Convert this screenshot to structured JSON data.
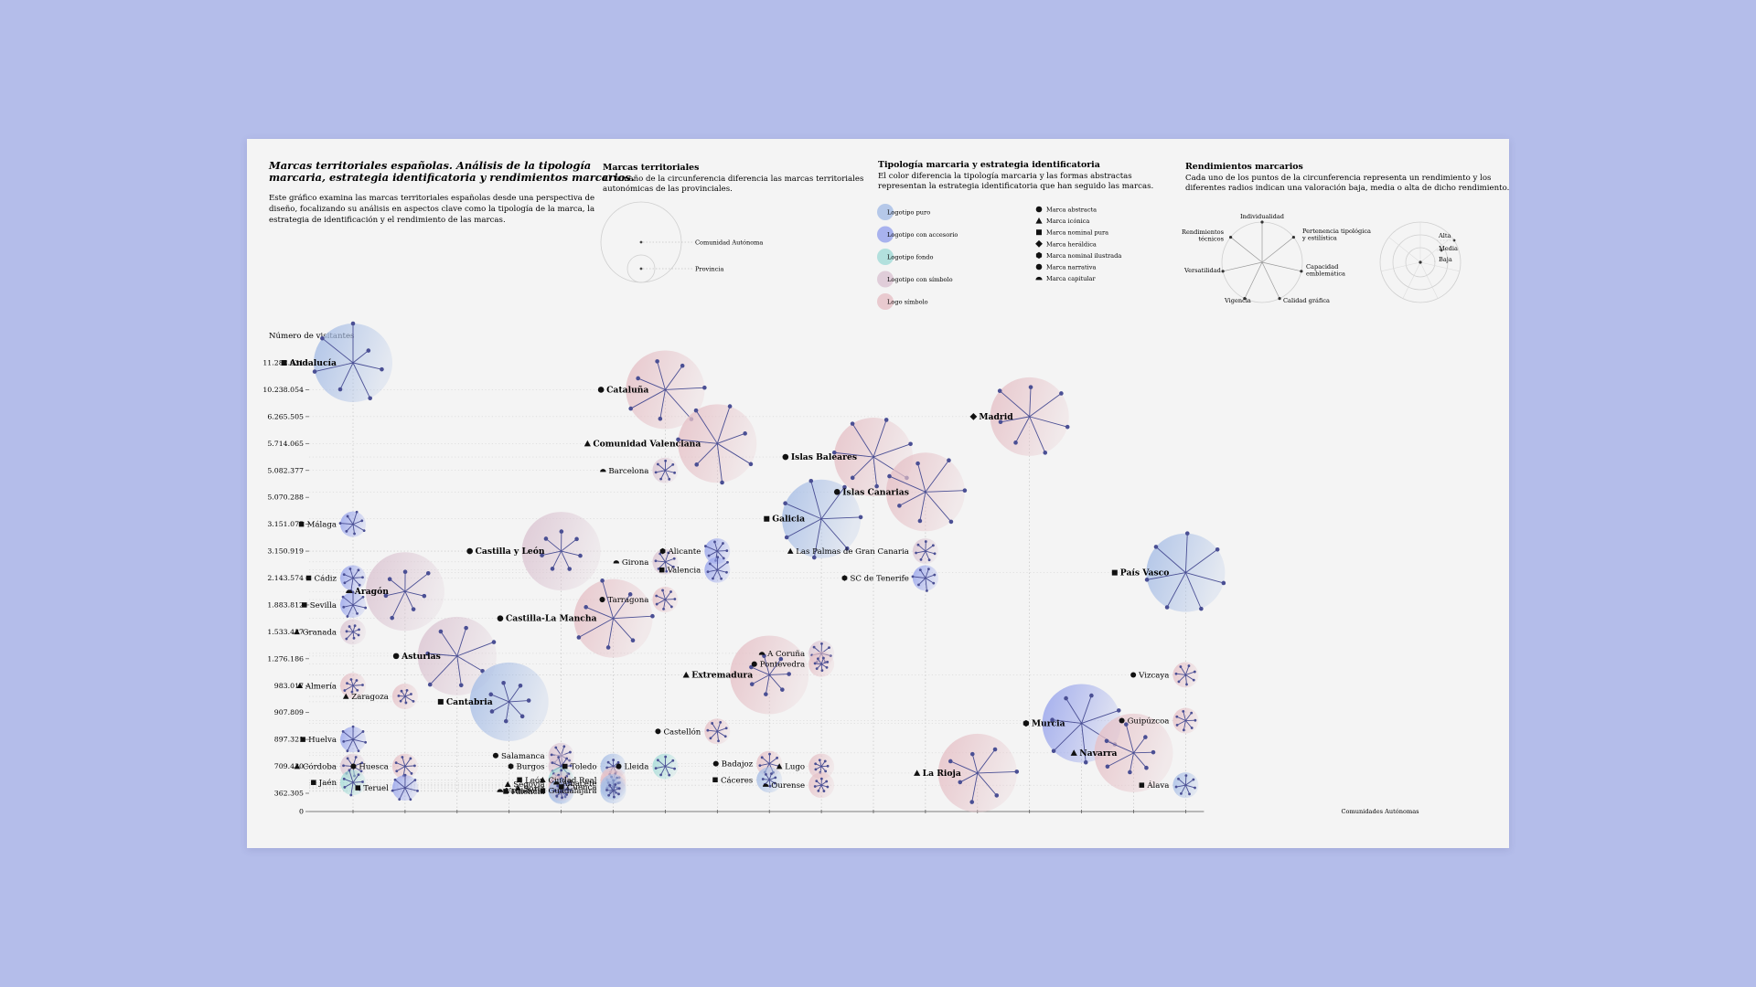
{
  "header": {
    "title_line1": "Marcas territoriales españolas. Análisis de la tipología",
    "title_line2": "marcaria, estrategia identificatoria y rendimientos marcarios.",
    "intro_lines": [
      "Este gráfico examina las marcas territoriales españolas desde una perspectiva de",
      "diseño, focalizando su análisis en aspectos clave como la tipología de la marca, la",
      "estrategia de identificación y el rendimiento de las marcas."
    ]
  },
  "legend_size": {
    "title": "Marcas territoriales",
    "lines": [
      "El tamaño de la circunferencia diferencia las marcas territoriales",
      "autonómicas de las provinciales."
    ],
    "large_label": "Comunidad Autónoma",
    "small_label": "Provincia"
  },
  "legend_type": {
    "title": "Tipología marcaria y estrategia identificatoria",
    "lines": [
      "El color diferencia la tipología marcaria y las formas abstractas",
      "representan la estrategia identificatoria que han seguido las marcas."
    ],
    "colors": [
      {
        "label": "Logotipo puro",
        "color": "#a9bfe6"
      },
      {
        "label": "Logotipo con accesorio",
        "color": "#9aa6ec"
      },
      {
        "label": "Logotipo fondo",
        "color": "#a6dcd8"
      },
      {
        "label": "Logotipo con símbolo",
        "color": "#dcc6d3"
      },
      {
        "label": "Logo símbolo",
        "color": "#e6c2c8"
      }
    ],
    "shapes": [
      {
        "label": "Marca abstracta",
        "shape": "circle"
      },
      {
        "label": "Marca icónica",
        "shape": "triangle"
      },
      {
        "label": "Marca nominal pura",
        "shape": "square"
      },
      {
        "label": "Marca heráldica",
        "shape": "diamond"
      },
      {
        "label": "Marca nominal ilustrada",
        "shape": "hexagon"
      },
      {
        "label": "Marca narrativa",
        "shape": "circle"
      },
      {
        "label": "Marca capitular",
        "shape": "dome"
      }
    ]
  },
  "legend_perf": {
    "title": "Rendimientos marcarios",
    "lines": [
      "Cada uno de los puntos de la circunferencia representa un rendimiento y los",
      "diferentes radios indican una valoración baja, media o alta de dicho rendimiento."
    ],
    "axes": [
      "Individualidad",
      "Pertenencia tipológica y estilística",
      "Capacidad emblemática",
      "Calidad gráfica",
      "Vigencia",
      "Versatilidad",
      "Rendimientos técnicos"
    ],
    "levels": [
      "Alta",
      "Media",
      "Baja"
    ]
  },
  "chart_data": {
    "type": "scatter",
    "ylabel": "Número de visitantes",
    "xlabel": "Comunidades Autónomas",
    "y_ticks": [
      "0",
      "362.305",
      "709.430",
      "897.321",
      "907.809",
      "983.017",
      "1.276.186",
      "1.533.437",
      "1.883.812",
      "2.143.574",
      "3.150.919",
      "3.151.075",
      "5.070.288",
      "5.082.377",
      "5.714.065",
      "6.265.505",
      "10.238.054",
      "11.282.631"
    ],
    "columns": 17,
    "colors": {
      "p": "#a9bfe6",
      "a": "#9aa6ec",
      "f": "#a6dcd8",
      "s": "#dcc6d3",
      "l": "#e6c2c8",
      "dot": "#4a4f94"
    },
    "points": [
      {
        "name": "Andalucía",
        "col": 0,
        "level": 17,
        "ca": true,
        "color": "p",
        "shape": "square",
        "perf": [
          3,
          1,
          2,
          3,
          2,
          3,
          3
        ]
      },
      {
        "name": "Málaga",
        "col": 0,
        "level": 11,
        "ca": false,
        "color": "a",
        "shape": "square",
        "perf": [
          3,
          2,
          3,
          2,
          2,
          3,
          2
        ]
      },
      {
        "name": "Cádiz",
        "col": 0,
        "level": 9,
        "ca": false,
        "color": "a",
        "shape": "square",
        "perf": [
          2,
          2,
          2,
          3,
          2,
          2,
          2
        ]
      },
      {
        "name": "Sevilla",
        "col": 0,
        "level": 8,
        "ca": false,
        "color": "a",
        "shape": "square",
        "perf": [
          3,
          3,
          2,
          3,
          2,
          3,
          3
        ]
      },
      {
        "name": "Granada",
        "col": 0,
        "level": 7,
        "ca": false,
        "color": "s",
        "shape": "triangle",
        "perf": [
          1,
          1,
          1,
          2,
          1,
          1,
          1
        ]
      },
      {
        "name": "Almería",
        "col": 0,
        "level": 5,
        "ca": false,
        "color": "l",
        "shape": "triangle",
        "perf": [
          2,
          1,
          1,
          2,
          1,
          1,
          1
        ]
      },
      {
        "name": "Huelva",
        "col": 0,
        "level": 3,
        "ca": false,
        "color": "a",
        "shape": "square",
        "perf": [
          3,
          3,
          3,
          2,
          3,
          3,
          3
        ]
      },
      {
        "name": "Córdoba",
        "col": 0,
        "level": 2,
        "ca": false,
        "color": "s",
        "shape": "triangle",
        "perf": [
          2,
          2,
          2,
          2,
          2,
          2,
          2
        ]
      },
      {
        "name": "Jaén",
        "col": 0,
        "level": 1.4,
        "ca": false,
        "color": "f",
        "shape": "square",
        "perf": [
          2,
          3,
          2,
          2,
          3,
          2,
          2
        ]
      },
      {
        "name": "Aragón",
        "col": 1,
        "level": 8.5,
        "ca": true,
        "color": "s",
        "shape": "dome",
        "perf": [
          1,
          2,
          1,
          1,
          1,
          2,
          1
        ]
      },
      {
        "name": "Zaragoza",
        "col": 1,
        "level": 4.6,
        "ca": false,
        "color": "l",
        "shape": "triangle",
        "perf": [
          1,
          1,
          1,
          1,
          1,
          1,
          2
        ]
      },
      {
        "name": "Huesca",
        "col": 1,
        "level": 2,
        "ca": false,
        "color": "l",
        "shape": "circle",
        "perf": [
          2,
          2,
          2,
          2,
          2,
          2,
          2
        ]
      },
      {
        "name": "Teruel",
        "col": 1,
        "level": 1.2,
        "ca": false,
        "color": "a",
        "shape": "square",
        "perf": [
          3,
          3,
          3,
          3,
          3,
          3,
          3
        ]
      },
      {
        "name": "Asturias",
        "col": 2,
        "level": 6.1,
        "ca": true,
        "color": "s",
        "shape": "circle",
        "perf": [
          3,
          2,
          2,
          2,
          3,
          2,
          2
        ]
      },
      {
        "name": "Cantabria",
        "col": 3,
        "level": 4.4,
        "ca": true,
        "color": "p",
        "shape": "square",
        "perf": [
          1,
          1,
          1,
          1,
          1,
          1,
          1
        ]
      },
      {
        "name": "Castilla y León",
        "col": 4,
        "level": 10,
        "ca": true,
        "color": "s",
        "shape": "circle",
        "perf": [
          1,
          1,
          1,
          1,
          1,
          1,
          1
        ]
      },
      {
        "name": "Salamanca",
        "col": 4,
        "level": 2.4,
        "ca": false,
        "color": "s",
        "shape": "circle",
        "perf": [
          2,
          2,
          2,
          2,
          2,
          2,
          2
        ]
      },
      {
        "name": "Burgos",
        "col": 4,
        "level": 2,
        "ca": false,
        "color": "s",
        "shape": "hexagon",
        "perf": [
          2,
          2,
          2,
          2,
          2,
          2,
          2
        ]
      },
      {
        "name": "León",
        "col": 4,
        "level": 1.5,
        "ca": false,
        "color": "f",
        "shape": "square",
        "perf": [
          2,
          2,
          2,
          2,
          2,
          2,
          2
        ]
      },
      {
        "name": "Valladolid",
        "col": 4,
        "level": 1.1,
        "ca": false,
        "color": "p",
        "shape": "dome",
        "perf": [
          1,
          1,
          1,
          1,
          1,
          1,
          1
        ]
      },
      {
        "name": "Segovia",
        "col": 4,
        "level": 0.7,
        "ca": false,
        "color": "s",
        "shape": "triangle",
        "perf": [
          2,
          2,
          2,
          2,
          2,
          2,
          2
        ]
      },
      {
        "name": "Soria",
        "col": 4,
        "level": 0.4,
        "ca": false,
        "color": "l",
        "shape": "triangle",
        "perf": [
          2,
          2,
          2,
          2,
          2,
          2,
          2
        ]
      },
      {
        "name": "Palencia",
        "col": 4,
        "level": 0.15,
        "ca": false,
        "color": "p",
        "shape": "square",
        "perf": [
          1,
          1,
          1,
          1,
          1,
          1,
          1
        ]
      },
      {
        "name": "Castilla-La Mancha",
        "col": 5,
        "level": 7.5,
        "ca": true,
        "color": "l",
        "shape": "circle",
        "perf": [
          2,
          3,
          2,
          2,
          3,
          2,
          3
        ]
      },
      {
        "name": "Toledo",
        "col": 5,
        "level": 2,
        "ca": false,
        "color": "p",
        "shape": "square",
        "perf": [
          1,
          1,
          1,
          1,
          1,
          1,
          1
        ]
      },
      {
        "name": "Ciudad Real",
        "col": 5,
        "level": 1.5,
        "ca": false,
        "color": "l",
        "shape": "triangle",
        "perf": [
          1,
          1,
          1,
          1,
          1,
          1,
          1
        ]
      },
      {
        "name": "Albacete",
        "col": 5,
        "level": 0.8,
        "ca": false,
        "color": "l",
        "shape": "dome",
        "perf": [
          1,
          1,
          1,
          1,
          1,
          1,
          1
        ]
      },
      {
        "name": "Cuenca",
        "col": 5,
        "level": 0.5,
        "ca": false,
        "color": "p",
        "shape": "square",
        "perf": [
          1,
          1,
          1,
          1,
          1,
          1,
          1
        ]
      },
      {
        "name": "Guadalajara",
        "col": 5,
        "level": 0.2,
        "ca": false,
        "color": "p",
        "shape": "square",
        "perf": [
          1,
          1,
          1,
          1,
          1,
          1,
          1
        ]
      },
      {
        "name": "Cataluña",
        "col": 6,
        "level": 16,
        "ca": true,
        "color": "l",
        "shape": "circle",
        "perf": [
          3,
          2,
          3,
          2,
          2,
          2,
          3
        ]
      },
      {
        "name": "Barcelona",
        "col": 6,
        "level": 13,
        "ca": false,
        "color": "s",
        "shape": "dome",
        "perf": [
          2,
          2,
          2,
          2,
          2,
          2,
          2
        ]
      },
      {
        "name": "Girona",
        "col": 6,
        "level": 9.6,
        "ca": false,
        "color": "s",
        "shape": "dome",
        "perf": [
          2,
          2,
          2,
          2,
          2,
          2,
          2
        ]
      },
      {
        "name": "Tarragona",
        "col": 6,
        "level": 8.2,
        "ca": false,
        "color": "l",
        "shape": "circle",
        "perf": [
          2,
          2,
          2,
          2,
          2,
          2,
          2
        ]
      },
      {
        "name": "Lleida",
        "col": 6,
        "level": 2,
        "ca": false,
        "color": "f",
        "shape": "circle",
        "perf": [
          2,
          2,
          2,
          2,
          2,
          2,
          2
        ]
      },
      {
        "name": "Comunidad Valenciana",
        "col": 7,
        "level": 14,
        "ca": true,
        "color": "l",
        "shape": "triangle",
        "perf": [
          2,
          3,
          3,
          3,
          2,
          3,
          3
        ]
      },
      {
        "name": "Alicante",
        "col": 7,
        "level": 10,
        "ca": false,
        "color": "a",
        "shape": "hexagon",
        "perf": [
          2,
          3,
          2,
          2,
          2,
          2,
          2
        ]
      },
      {
        "name": "Valencia",
        "col": 7,
        "level": 9.3,
        "ca": false,
        "color": "a",
        "shape": "square",
        "perf": [
          2,
          2,
          3,
          3,
          2,
          2,
          2
        ]
      },
      {
        "name": "Castellón",
        "col": 7,
        "level": 3.3,
        "ca": false,
        "color": "l",
        "shape": "circle",
        "perf": [
          2,
          2,
          2,
          2,
          2,
          2,
          2
        ]
      },
      {
        "name": "Extremadura",
        "col": 8,
        "level": 5.4,
        "ca": true,
        "color": "l",
        "shape": "triangle",
        "perf": [
          1,
          1,
          1,
          1,
          1,
          1,
          1
        ]
      },
      {
        "name": "Badajoz",
        "col": 8,
        "level": 2.1,
        "ca": false,
        "color": "l",
        "shape": "circle",
        "perf": [
          2,
          2,
          2,
          2,
          2,
          2,
          2
        ]
      },
      {
        "name": "Cáceres",
        "col": 8,
        "level": 1.5,
        "ca": false,
        "color": "p",
        "shape": "square",
        "perf": [
          1,
          1,
          1,
          1,
          1,
          1,
          1
        ]
      },
      {
        "name": "Galicia",
        "col": 9,
        "level": 11.2,
        "ca": true,
        "color": "p",
        "shape": "square",
        "perf": [
          3,
          3,
          3,
          3,
          3,
          3,
          3
        ]
      },
      {
        "name": "A Coruña",
        "col": 9,
        "level": 6.2,
        "ca": false,
        "color": "s",
        "shape": "dome",
        "perf": [
          2,
          2,
          2,
          2,
          2,
          2,
          2
        ]
      },
      {
        "name": "Pontevedra",
        "col": 9,
        "level": 5.8,
        "ca": false,
        "color": "l",
        "shape": "circle",
        "perf": [
          1,
          1,
          1,
          1,
          1,
          1,
          1
        ]
      },
      {
        "name": "Lugo",
        "col": 9,
        "level": 2,
        "ca": false,
        "color": "l",
        "shape": "triangle",
        "perf": [
          1,
          1,
          1,
          1,
          1,
          1,
          1
        ]
      },
      {
        "name": "Ourense",
        "col": 9,
        "level": 1.3,
        "ca": false,
        "color": "l",
        "shape": "dome",
        "perf": [
          1,
          1,
          1,
          1,
          1,
          1,
          1
        ]
      },
      {
        "name": "Islas Baleares",
        "col": 10,
        "level": 13.5,
        "ca": true,
        "color": "l",
        "shape": "circle",
        "perf": [
          3,
          3,
          2,
          2,
          3,
          3,
          3
        ]
      },
      {
        "name": "Islas Canarias",
        "col": 11,
        "level": 12.2,
        "ca": true,
        "color": "l",
        "shape": "circle",
        "perf": [
          3,
          3,
          2,
          2,
          3,
          2,
          3
        ]
      },
      {
        "name": "Las Palmas de Gran Canaria",
        "col": 11,
        "level": 10,
        "ca": false,
        "color": "s",
        "shape": "triangle",
        "perf": [
          2,
          2,
          2,
          2,
          2,
          2,
          2
        ]
      },
      {
        "name": "SC de Tenerife",
        "col": 11,
        "level": 9,
        "ca": false,
        "color": "a",
        "shape": "hexagon",
        "perf": [
          2,
          3,
          2,
          3,
          2,
          2,
          2
        ]
      },
      {
        "name": "La Rioja",
        "col": 12,
        "level": 1.75,
        "ca": true,
        "color": "l",
        "shape": "triangle",
        "perf": [
          2,
          2,
          1,
          2,
          1,
          2,
          3
        ]
      },
      {
        "name": "Madrid",
        "col": 13,
        "level": 15,
        "ca": true,
        "color": "l",
        "shape": "diamond",
        "perf": [
          3,
          2,
          2,
          3,
          2,
          3,
          3
        ]
      },
      {
        "name": "Murcia",
        "col": 14,
        "level": 3.6,
        "ca": true,
        "color": "a",
        "shape": "hexagon",
        "perf": [
          3,
          3,
          2,
          2,
          2,
          3,
          3
        ]
      },
      {
        "name": "Navarra",
        "col": 15,
        "level": 2.5,
        "ca": true,
        "color": "l",
        "shape": "triangle",
        "perf": [
          1,
          2,
          2,
          2,
          1,
          1,
          1
        ]
      },
      {
        "name": "País Vasco",
        "col": 16,
        "level": 9.2,
        "ca": true,
        "color": "p",
        "shape": "square",
        "perf": [
          3,
          3,
          3,
          3,
          3,
          3,
          3
        ]
      },
      {
        "name": "Vizcaya",
        "col": 16,
        "level": 5.4,
        "ca": false,
        "color": "l",
        "shape": "circle",
        "perf": [
          2,
          2,
          2,
          2,
          2,
          2,
          2
        ]
      },
      {
        "name": "Guipúzcoa",
        "col": 16,
        "level": 3.7,
        "ca": false,
        "color": "l",
        "shape": "circle",
        "perf": [
          2,
          2,
          2,
          2,
          2,
          2,
          2
        ]
      },
      {
        "name": "Álava",
        "col": 16,
        "level": 1.3,
        "ca": false,
        "color": "p",
        "shape": "square",
        "perf": [
          2,
          2,
          2,
          2,
          2,
          2,
          2
        ]
      }
    ]
  }
}
